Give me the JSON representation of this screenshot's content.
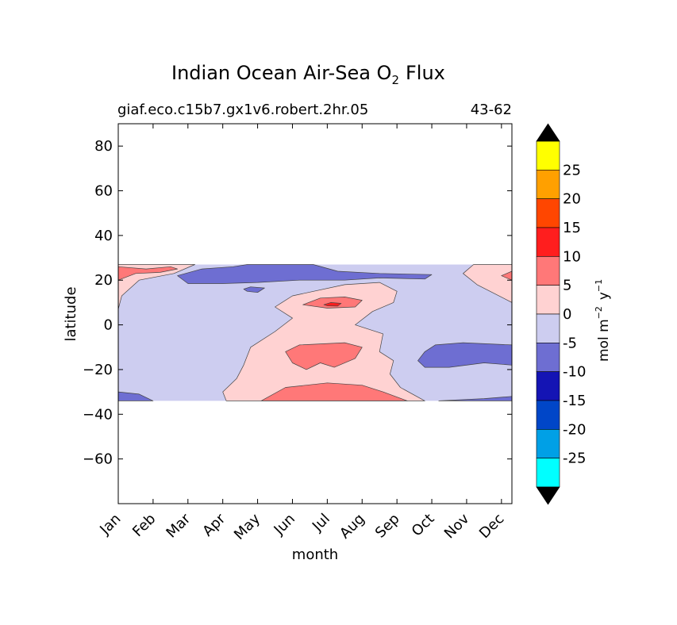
{
  "chart_data": {
    "type": "heatmap",
    "title": {
      "main": "Indian Ocean Air-Sea O",
      "subscript": "2",
      "suffix": "Flux"
    },
    "subtitle_left": "giaf.eco.c15b7.gx1v6.robert.2hr.05",
    "subtitle_right": "43-62",
    "xlabel": "month",
    "ylabel": "latitude",
    "x_tick_labels": [
      "Jan",
      "Feb",
      "Mar",
      "Apr",
      "May",
      "Jun",
      "Jul",
      "Aug",
      "Sep",
      "Oct",
      "Nov",
      "Dec"
    ],
    "x_range": [
      0,
      11.3
    ],
    "y_range": [
      -80,
      90
    ],
    "y_ticks": [
      80,
      60,
      40,
      20,
      0,
      -20,
      -40,
      -60
    ],
    "y_tick_labels": [
      "80",
      "60",
      "40",
      "20",
      "0",
      "−20",
      "−40",
      "−60"
    ],
    "data_lat_range": [
      -34,
      27
    ],
    "colorbar": {
      "label": "mol m",
      "label_sup1": "−2",
      "label_mid": "y",
      "label_sup2": "−1",
      "levels": [
        -30,
        -25,
        -20,
        -15,
        -10,
        -5,
        0,
        5,
        10,
        15,
        20,
        25,
        30
      ],
      "tick_values": [
        25,
        20,
        15,
        10,
        5,
        0,
        -5,
        -10,
        -15,
        -20,
        -25
      ],
      "tick_labels": [
        "25",
        "20",
        "15",
        "10",
        "5",
        "0",
        "-5",
        "-10",
        "-15",
        "-20",
        "-25"
      ],
      "colors": [
        "#00ffff",
        "#00a0e6",
        "#0046c8",
        "#1414b4",
        "#6e6ed2",
        "#cdcdf0",
        "#ffd2d2",
        "#ff7878",
        "#ff1e1e",
        "#ff4600",
        "#ffa000",
        "#ffff00"
      ],
      "extend": "both",
      "extend_color": "#000000"
    },
    "regions": [
      {
        "name": "background-0-to-minus5",
        "level_min": -5,
        "level_max": 0,
        "points": [
          [
            0,
            27
          ],
          [
            11.3,
            27
          ],
          [
            11.3,
            -34
          ],
          [
            0,
            -34
          ]
        ]
      },
      {
        "name": "positive-0-to-5-west",
        "level_min": 0,
        "level_max": 5,
        "points": [
          [
            0,
            27
          ],
          [
            2.2,
            27
          ],
          [
            1.6,
            23
          ],
          [
            0.6,
            20
          ],
          [
            0.1,
            13
          ],
          [
            0,
            7
          ]
        ]
      },
      {
        "name": "positive-0-to-5-east",
        "level_min": 0,
        "level_max": 5,
        "points": [
          [
            11.3,
            27
          ],
          [
            10.2,
            27
          ],
          [
            9.9,
            23
          ],
          [
            10.3,
            18
          ],
          [
            11.3,
            10
          ]
        ]
      },
      {
        "name": "positive-0-to-5-central",
        "level_min": 0,
        "level_max": 5,
        "points": [
          [
            4.3,
            -34
          ],
          [
            3.1,
            -34
          ],
          [
            3.0,
            -30
          ],
          [
            3.4,
            -24
          ],
          [
            3.6,
            -18
          ],
          [
            3.8,
            -10
          ],
          [
            4.5,
            -3
          ],
          [
            5.0,
            3
          ],
          [
            4.5,
            8
          ],
          [
            5.0,
            13
          ],
          [
            6.5,
            18
          ],
          [
            7.5,
            19
          ],
          [
            8.0,
            15
          ],
          [
            7.9,
            10
          ],
          [
            7.3,
            6
          ],
          [
            6.8,
            0
          ],
          [
            7.6,
            -4
          ],
          [
            7.5,
            -12
          ],
          [
            7.9,
            -16
          ],
          [
            7.8,
            -22
          ],
          [
            8.1,
            -28
          ],
          [
            8.8,
            -34
          ]
        ]
      },
      {
        "name": "positive-5-to-10-south",
        "level_min": 5,
        "level_max": 10,
        "points": [
          [
            4.1,
            -34
          ],
          [
            4.8,
            -28
          ],
          [
            6.0,
            -26
          ],
          [
            7.0,
            -27
          ],
          [
            7.6,
            -30
          ],
          [
            8.3,
            -34
          ]
        ]
      },
      {
        "name": "positive-5-to-10-midlat",
        "level_min": 5,
        "level_max": 10,
        "points": [
          [
            5.0,
            -17
          ],
          [
            4.8,
            -12
          ],
          [
            5.2,
            -9
          ],
          [
            6.5,
            -8
          ],
          [
            7.0,
            -10
          ],
          [
            6.8,
            -15
          ],
          [
            6.2,
            -19
          ],
          [
            5.8,
            -17
          ],
          [
            5.4,
            -20
          ]
        ]
      },
      {
        "name": "positive-5-to-10-equatorial",
        "level_min": 5,
        "level_max": 10,
        "points": [
          [
            5.3,
            9
          ],
          [
            5.8,
            12
          ],
          [
            6.5,
            12.5
          ],
          [
            7.0,
            11
          ],
          [
            6.8,
            8
          ],
          [
            6.0,
            7.5
          ]
        ]
      },
      {
        "name": "positive-10-to-15-core",
        "level_min": 10,
        "level_max": 15,
        "points": [
          [
            5.9,
            9
          ],
          [
            6.1,
            10
          ],
          [
            6.4,
            9.6
          ],
          [
            6.3,
            8.4
          ],
          [
            6.0,
            8.5
          ]
        ]
      },
      {
        "name": "positive-5-to-10-west-coast",
        "level_min": 5,
        "level_max": 10,
        "points": [
          [
            0,
            26
          ],
          [
            0.8,
            25
          ],
          [
            1.5,
            26
          ],
          [
            1.7,
            25
          ],
          [
            1.2,
            23.5
          ],
          [
            0.5,
            23
          ],
          [
            0,
            20
          ]
        ]
      },
      {
        "name": "positive-5-to-10-east-coast",
        "level_min": 5,
        "level_max": 10,
        "points": [
          [
            11.3,
            24
          ],
          [
            11.0,
            22
          ],
          [
            11.3,
            20
          ]
        ]
      },
      {
        "name": "negative-5-to-10-north-band",
        "level_min": -10,
        "level_max": -5,
        "points": [
          [
            1.7,
            22
          ],
          [
            2.4,
            25
          ],
          [
            3.3,
            26
          ],
          [
            3.7,
            27
          ],
          [
            5.6,
            27
          ],
          [
            6.3,
            24
          ],
          [
            7.5,
            23
          ],
          [
            9.0,
            22.5
          ],
          [
            8.8,
            20.5
          ],
          [
            7.5,
            21
          ],
          [
            6.5,
            20
          ],
          [
            5.2,
            20
          ],
          [
            4.0,
            19
          ],
          [
            3.0,
            18.5
          ],
          [
            2.0,
            18.5
          ]
        ]
      },
      {
        "name": "negative-5-to-10-small-patch",
        "level_min": -10,
        "level_max": -5,
        "points": [
          [
            3.6,
            16
          ],
          [
            3.8,
            17
          ],
          [
            4.2,
            16.5
          ],
          [
            4.0,
            14.5
          ],
          [
            3.7,
            15
          ]
        ]
      },
      {
        "name": "negative-5-to-10-southeast",
        "level_min": -10,
        "level_max": -5,
        "points": [
          [
            8.6,
            -16
          ],
          [
            8.8,
            -12
          ],
          [
            9.1,
            -9
          ],
          [
            9.9,
            -8
          ],
          [
            11.3,
            -9
          ],
          [
            11.3,
            -18
          ],
          [
            10.5,
            -17
          ],
          [
            9.5,
            -19
          ],
          [
            8.8,
            -19
          ]
        ]
      },
      {
        "name": "negative-5-to-10-south-edge",
        "level_min": -10,
        "level_max": -5,
        "points": [
          [
            0,
            -30
          ],
          [
            0.6,
            -31
          ],
          [
            1.0,
            -34
          ],
          [
            0,
            -34
          ]
        ]
      },
      {
        "name": "negative-5-to-10-south-edge-east",
        "level_min": -10,
        "level_max": -5,
        "points": [
          [
            9.2,
            -34
          ],
          [
            11.3,
            -34
          ],
          [
            11.3,
            -32
          ],
          [
            10.5,
            -33
          ]
        ]
      }
    ]
  }
}
